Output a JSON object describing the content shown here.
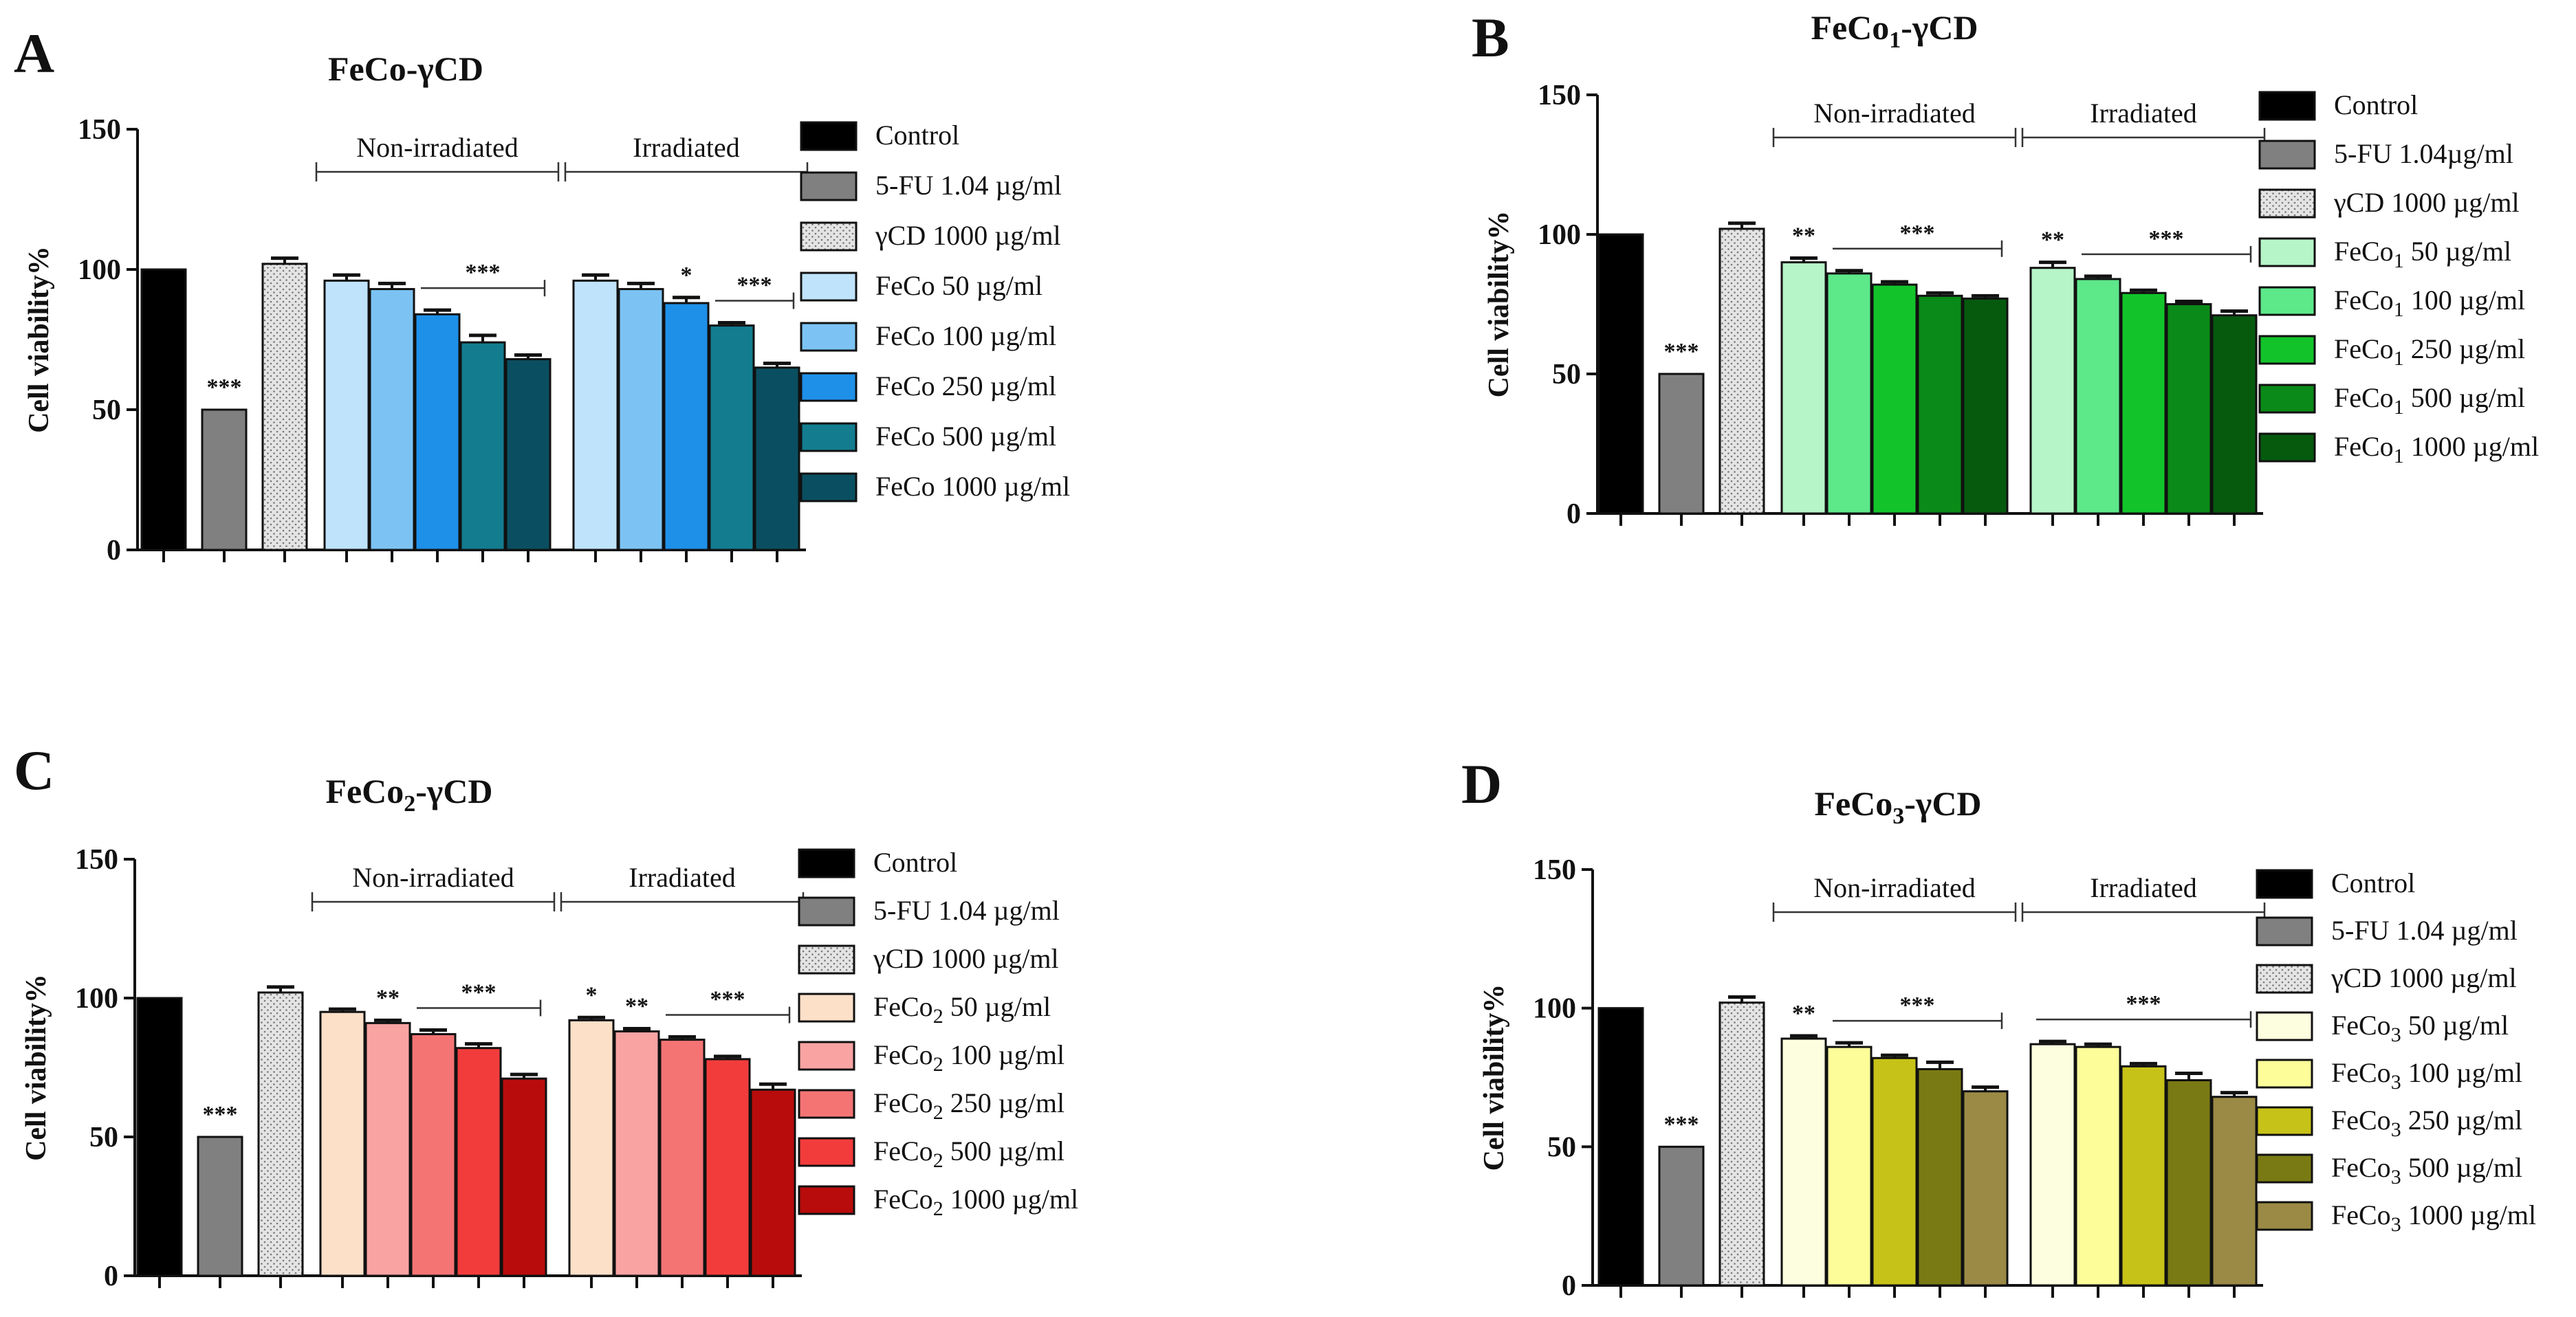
{
  "chart_data": [
    {
      "type": "bar",
      "panel": "A",
      "title_parts": [
        {
          "t": "FeCo-γCD",
          "sub": false
        }
      ],
      "ylabel": "Cell viability%",
      "ylim": [
        0,
        150
      ],
      "yticks": [
        0,
        50,
        100,
        150
      ],
      "group_labels": [
        "Non-irradiated",
        "Irradiated"
      ],
      "legend": [
        {
          "text": "Control",
          "color": "#000000",
          "pattern": "solid"
        },
        {
          "text": "5-FU 1.04 µg/ml",
          "color": "#808080",
          "pattern": "solid"
        },
        {
          "text": "γCD 1000 µg/ml",
          "color": "#d9d9d9",
          "pattern": "dots"
        },
        {
          "text": "FeCo 50 µg/ml",
          "color": "#bfe3fa",
          "pattern": "solid"
        },
        {
          "text": "FeCo 100  µg/ml",
          "color": "#7cc3f4",
          "pattern": "solid"
        },
        {
          "text": "FeCo 250  µg/ml",
          "color": "#1e90e8",
          "pattern": "solid"
        },
        {
          "text": "FeCo 500  µg/ml",
          "color": "#137c8f",
          "pattern": "solid"
        },
        {
          "text": "FeCo 1000  µg/ml",
          "color": "#0a4f61",
          "pattern": "solid"
        }
      ],
      "bars": [
        {
          "series": 0,
          "value": 100,
          "err": 0,
          "sig": ""
        },
        {
          "series": 1,
          "value": 50,
          "err": 0,
          "sig": "***"
        },
        {
          "series": 2,
          "value": 102,
          "err": 2,
          "sig": ""
        },
        {
          "series": 3,
          "value": 96,
          "err": 2,
          "sig": ""
        },
        {
          "series": 4,
          "value": 93,
          "err": 2,
          "sig": ""
        },
        {
          "series": 5,
          "value": 84,
          "err": 1.5,
          "sig": ""
        },
        {
          "series": 6,
          "value": 74,
          "err": 2.5,
          "sig": ""
        },
        {
          "series": 7,
          "value": 68,
          "err": 1.5,
          "sig": ""
        },
        {
          "series": 3,
          "value": 96,
          "err": 2,
          "sig": ""
        },
        {
          "series": 4,
          "value": 93,
          "err": 2,
          "sig": ""
        },
        {
          "series": 5,
          "value": 88,
          "err": 2,
          "sig": "*"
        },
        {
          "series": 6,
          "value": 80,
          "err": 1,
          "sig": ""
        },
        {
          "series": 7,
          "value": 65,
          "err": 1.5,
          "sig": ""
        }
      ],
      "sig_brackets": [
        {
          "from": 5,
          "to": 7,
          "label": "***"
        },
        {
          "from": 11,
          "to": 12,
          "label": "***"
        }
      ]
    },
    {
      "type": "bar",
      "panel": "B",
      "title_parts": [
        {
          "t": "FeCo",
          "sub": false
        },
        {
          "t": "1",
          "sub": true
        },
        {
          "t": "-γCD",
          "sub": false
        }
      ],
      "ylabel": "Cell viability%",
      "ylim": [
        0,
        150
      ],
      "yticks": [
        0,
        50,
        100,
        150
      ],
      "group_labels": [
        "Non-irradiated",
        "Irradiated"
      ],
      "legend": [
        {
          "text": "Control",
          "color": "#000000",
          "pattern": "solid"
        },
        {
          "text": "5-FU 1.04µg/ml",
          "color": "#808080",
          "pattern": "solid"
        },
        {
          "text": "γCD 1000 µg/ml",
          "color": "#d9d9d9",
          "pattern": "dots"
        },
        {
          "text": "FeCo1 50  µg/ml",
          "color": "#b6f5c8",
          "pattern": "solid"
        },
        {
          "text": "FeCo1 100  µg/ml",
          "color": "#5de88a",
          "pattern": "solid"
        },
        {
          "text": "FeCo1 250  µg/ml",
          "color": "#12c42a",
          "pattern": "solid"
        },
        {
          "text": "FeCo1 500  µg/ml",
          "color": "#0a8a18",
          "pattern": "solid"
        },
        {
          "text": "FeCo1 1000  µg/ml",
          "color": "#055a0e",
          "pattern": "solid"
        }
      ],
      "bars": [
        {
          "series": 0,
          "value": 100,
          "err": 0,
          "sig": ""
        },
        {
          "series": 1,
          "value": 50,
          "err": 0,
          "sig": "***"
        },
        {
          "series": 2,
          "value": 102,
          "err": 2,
          "sig": ""
        },
        {
          "series": 3,
          "value": 90,
          "err": 1.5,
          "sig": "**"
        },
        {
          "series": 4,
          "value": 86,
          "err": 1,
          "sig": ""
        },
        {
          "series": 5,
          "value": 82,
          "err": 1,
          "sig": ""
        },
        {
          "series": 6,
          "value": 78,
          "err": 1,
          "sig": ""
        },
        {
          "series": 7,
          "value": 77,
          "err": 1,
          "sig": ""
        },
        {
          "series": 3,
          "value": 88,
          "err": 2,
          "sig": "**"
        },
        {
          "series": 4,
          "value": 84,
          "err": 1,
          "sig": ""
        },
        {
          "series": 5,
          "value": 79,
          "err": 1,
          "sig": ""
        },
        {
          "series": 6,
          "value": 75,
          "err": 1,
          "sig": ""
        },
        {
          "series": 7,
          "value": 71,
          "err": 1.5,
          "sig": ""
        }
      ],
      "sig_brackets": [
        {
          "from": 4,
          "to": 7,
          "label": "***"
        },
        {
          "from": 9,
          "to": 12,
          "label": "***"
        }
      ]
    },
    {
      "type": "bar",
      "panel": "C",
      "title_parts": [
        {
          "t": "FeCo",
          "sub": false
        },
        {
          "t": "2",
          "sub": true
        },
        {
          "t": "-γCD",
          "sub": false
        }
      ],
      "ylabel": "Cell viability%",
      "ylim": [
        0,
        150
      ],
      "yticks": [
        0,
        50,
        100,
        150
      ],
      "group_labels": [
        "Non-irradiated",
        "Irradiated"
      ],
      "legend": [
        {
          "text": "Control",
          "color": "#000000",
          "pattern": "solid"
        },
        {
          "text": "5-FU 1.04 µg/ml",
          "color": "#808080",
          "pattern": "solid"
        },
        {
          "text": "γCD 1000 µg/ml",
          "color": "#d9d9d9",
          "pattern": "dots"
        },
        {
          "text": "FeCo2 50  µg/ml",
          "color": "#fde0c8",
          "pattern": "solid"
        },
        {
          "text": "FeCo2 100  µg/ml",
          "color": "#f9a3a3",
          "pattern": "solid"
        },
        {
          "text": "FeCo2 250  µg/ml",
          "color": "#f47474",
          "pattern": "solid"
        },
        {
          "text": "FeCo2 500  µg/ml",
          "color": "#f23c3c",
          "pattern": "solid"
        },
        {
          "text": "FeCo2 1000  µg/ml",
          "color": "#b80c0c",
          "pattern": "solid"
        }
      ],
      "bars": [
        {
          "series": 0,
          "value": 100,
          "err": 0,
          "sig": ""
        },
        {
          "series": 1,
          "value": 50,
          "err": 0,
          "sig": "***"
        },
        {
          "series": 2,
          "value": 102,
          "err": 2,
          "sig": ""
        },
        {
          "series": 3,
          "value": 95,
          "err": 1,
          "sig": ""
        },
        {
          "series": 4,
          "value": 91,
          "err": 1,
          "sig": "**"
        },
        {
          "series": 5,
          "value": 87,
          "err": 1.5,
          "sig": ""
        },
        {
          "series": 6,
          "value": 82,
          "err": 1.5,
          "sig": ""
        },
        {
          "series": 7,
          "value": 71,
          "err": 1.5,
          "sig": ""
        },
        {
          "series": 3,
          "value": 92,
          "err": 1,
          "sig": "*"
        },
        {
          "series": 4,
          "value": 88,
          "err": 1,
          "sig": "**"
        },
        {
          "series": 5,
          "value": 85,
          "err": 1,
          "sig": ""
        },
        {
          "series": 6,
          "value": 78,
          "err": 1,
          "sig": ""
        },
        {
          "series": 7,
          "value": 67,
          "err": 2,
          "sig": ""
        }
      ],
      "sig_brackets": [
        {
          "from": 5,
          "to": 7,
          "label": "***"
        },
        {
          "from": 10,
          "to": 12,
          "label": "***"
        }
      ]
    },
    {
      "type": "bar",
      "panel": "D",
      "title_parts": [
        {
          "t": "FeCo",
          "sub": false
        },
        {
          "t": "3",
          "sub": true
        },
        {
          "t": "-γCD",
          "sub": false
        }
      ],
      "ylabel": "Cell viability%",
      "ylim": [
        0,
        150
      ],
      "yticks": [
        0,
        50,
        100,
        150
      ],
      "group_labels": [
        "Non-irradiated",
        "Irradiated"
      ],
      "legend": [
        {
          "text": "Control",
          "color": "#000000",
          "pattern": "solid"
        },
        {
          "text": "5-FU 1.04 µg/ml",
          "color": "#808080",
          "pattern": "solid"
        },
        {
          "text": "γCD 1000 µg/ml",
          "color": "#d9d9d9",
          "pattern": "dots"
        },
        {
          "text": "FeCo3 50  µg/ml",
          "color": "#fdfde0",
          "pattern": "solid"
        },
        {
          "text": "FeCo3 100  µg/ml",
          "color": "#fdfd9a",
          "pattern": "solid"
        },
        {
          "text": "FeCo3 250  µg/ml",
          "color": "#c7c218",
          "pattern": "solid"
        },
        {
          "text": "FeCo3 500 µg/ml",
          "color": "#7a7a14",
          "pattern": "solid"
        },
        {
          "text": "FeCo3 1000 µg/ml",
          "color": "#9b8a45",
          "pattern": "solid"
        }
      ],
      "bars": [
        {
          "series": 0,
          "value": 100,
          "err": 0,
          "sig": ""
        },
        {
          "series": 1,
          "value": 50,
          "err": 0,
          "sig": "***"
        },
        {
          "series": 2,
          "value": 102,
          "err": 2,
          "sig": ""
        },
        {
          "series": 3,
          "value": 89,
          "err": 1,
          "sig": "**"
        },
        {
          "series": 4,
          "value": 86,
          "err": 1.5,
          "sig": ""
        },
        {
          "series": 5,
          "value": 82,
          "err": 1,
          "sig": ""
        },
        {
          "series": 6,
          "value": 78,
          "err": 2.5,
          "sig": ""
        },
        {
          "series": 7,
          "value": 70,
          "err": 1.5,
          "sig": ""
        },
        {
          "series": 3,
          "value": 87,
          "err": 1,
          "sig": ""
        },
        {
          "series": 4,
          "value": 86,
          "err": 1,
          "sig": ""
        },
        {
          "series": 5,
          "value": 79,
          "err": 1,
          "sig": ""
        },
        {
          "series": 6,
          "value": 74,
          "err": 2.5,
          "sig": ""
        },
        {
          "series": 7,
          "value": 68,
          "err": 1.5,
          "sig": ""
        }
      ],
      "sig_brackets": [
        {
          "from": 4,
          "to": 7,
          "label": "***"
        },
        {
          "from": 8,
          "to": 12,
          "label": "***"
        }
      ]
    }
  ]
}
